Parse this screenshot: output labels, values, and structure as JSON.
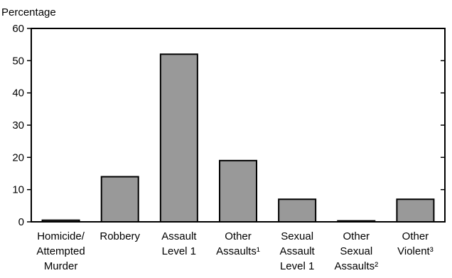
{
  "chart_data": {
    "type": "bar",
    "ylabel": "Percentage",
    "xlabel": "",
    "title": "",
    "ylim": [
      0,
      60
    ],
    "yticks": [
      0,
      10,
      20,
      30,
      40,
      50,
      60
    ],
    "grid": false,
    "categories": [
      [
        "Homicide/",
        "Attempted",
        "Murder"
      ],
      [
        "Robbery"
      ],
      [
        "Assault",
        "Level 1"
      ],
      [
        "Other",
        "Assaults¹"
      ],
      [
        "Sexual",
        "Assault",
        "Level 1"
      ],
      [
        "Other",
        "Sexual",
        "Assaults²"
      ],
      [
        "Other",
        "Violent³"
      ]
    ],
    "values": [
      0.5,
      14,
      52,
      19,
      7,
      0.3,
      7
    ],
    "bar_color": "#999999"
  }
}
